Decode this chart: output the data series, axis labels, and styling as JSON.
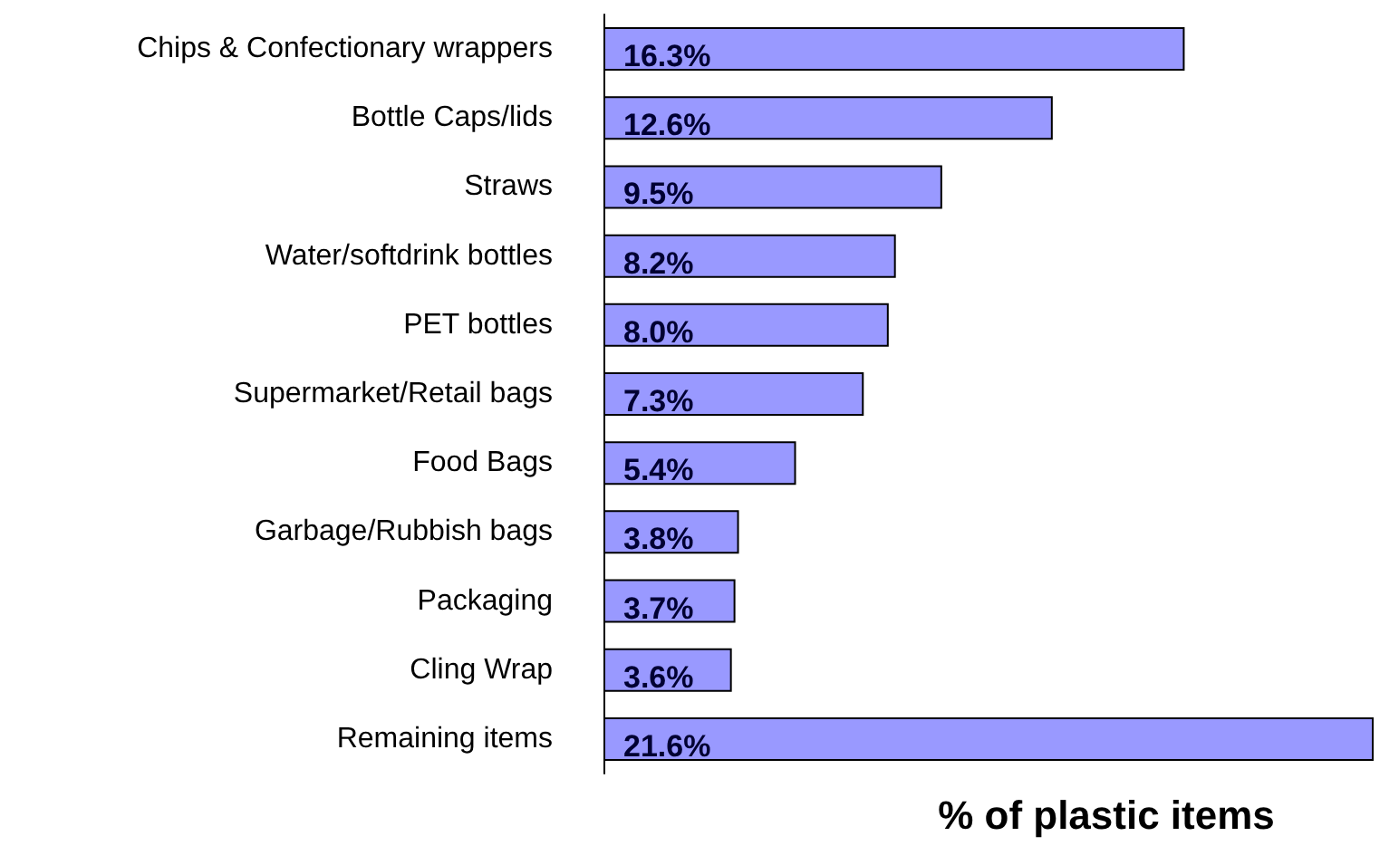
{
  "chart_data": {
    "type": "bar",
    "orientation": "horizontal",
    "xlabel": "% of plastic items",
    "categories": [
      "Chips & Confectionary wrappers",
      "Bottle Caps/lids",
      "Straws",
      "Water/softdrink bottles",
      "PET bottles",
      "Supermarket/Retail bags",
      "Food Bags",
      "Garbage/Rubbish bags",
      "Packaging",
      "Cling Wrap",
      "Remaining items"
    ],
    "values": [
      16.3,
      12.6,
      9.5,
      8.2,
      8.0,
      7.3,
      5.4,
      3.8,
      3.7,
      3.6,
      21.6
    ],
    "value_labels": [
      "16.3%",
      "12.6%",
      "9.5%",
      "8.2%",
      "8.0%",
      "7.3%",
      "5.4%",
      "3.8%",
      "3.7%",
      "3.6%",
      "21.6%"
    ],
    "color": "#9999ff",
    "tick_labels": "y"
  }
}
